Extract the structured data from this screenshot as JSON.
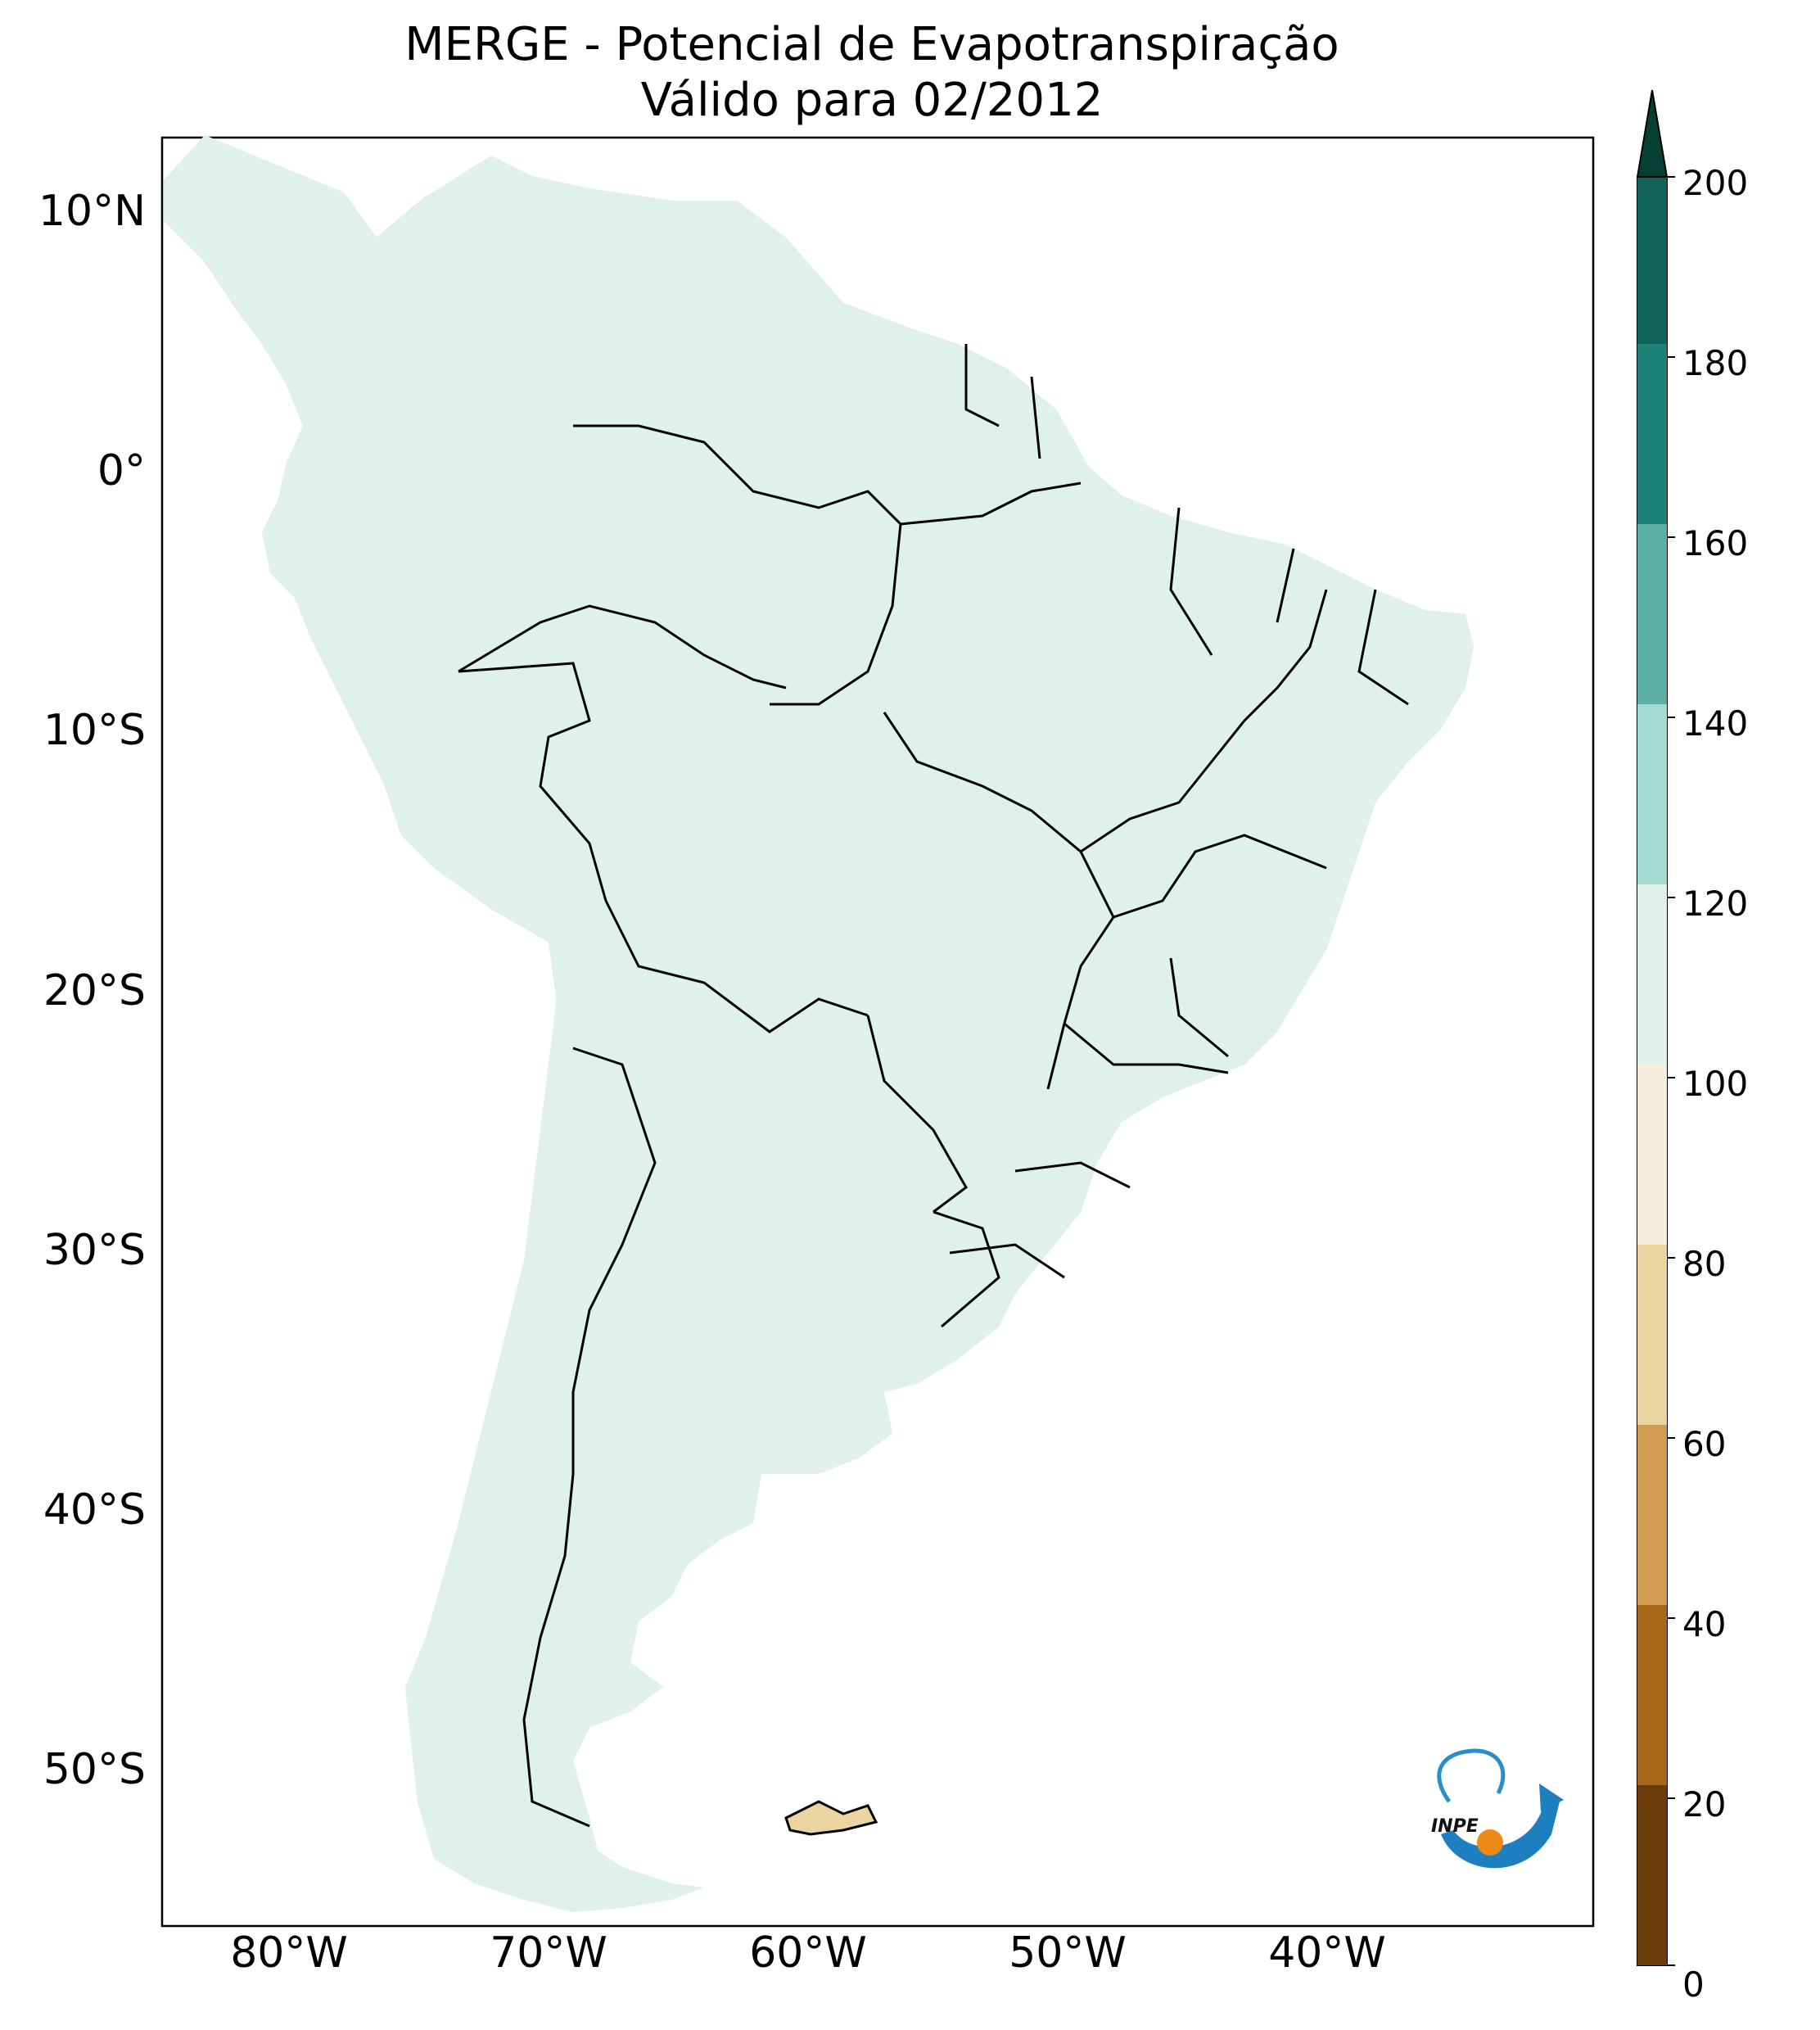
{
  "title": {
    "line1": "MERGE - Potencial de Evapotranspiração",
    "line2": "Válido para 02/2012"
  },
  "axes": {
    "lat_labels": [
      "10°N",
      "0°",
      "10°S",
      "20°S",
      "30°S",
      "40°S",
      "50°S"
    ],
    "lon_labels": [
      "80°W",
      "70°W",
      "60°W",
      "50°W",
      "40°W"
    ]
  },
  "colorbar": {
    "ticks": [
      "0",
      "20",
      "40",
      "60",
      "80",
      "100",
      "120",
      "140",
      "160",
      "180",
      "200"
    ],
    "extend": "max",
    "colors": [
      "#6b3d0a",
      "#a86619",
      "#cf9d52",
      "#ead5a0",
      "#f5eedd",
      "#dff0ed",
      "#a3dcd3",
      "#5bb0a7",
      "#1d8077",
      "#0f6358",
      "#063f33"
    ],
    "extend_color": "#063f33"
  },
  "logo": {
    "text": "INPE"
  },
  "map": {
    "land_base_color": "#dff0ed",
    "border_color": "#000000"
  }
}
